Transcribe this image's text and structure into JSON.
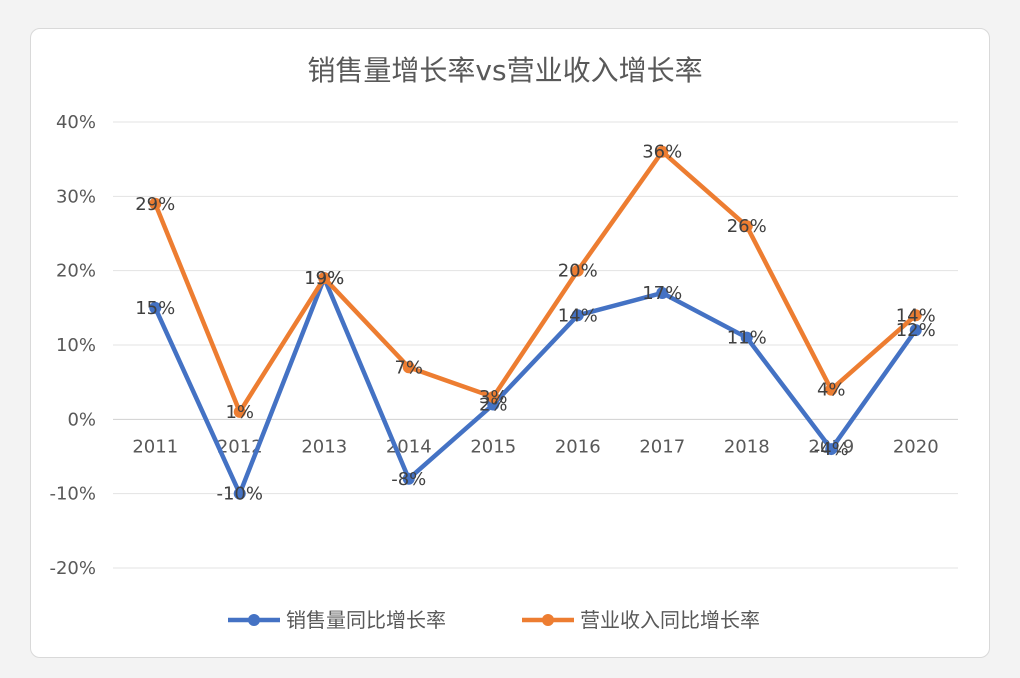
{
  "chart_data": {
    "type": "line",
    "title": "销售量增长率vs营业收入增长率",
    "categories": [
      "2011",
      "2012",
      "2013",
      "2014",
      "2015",
      "2016",
      "2017",
      "2018",
      "2019",
      "2020"
    ],
    "series": [
      {
        "name": "销售量同比增长率",
        "color": "#4472c4",
        "values": [
          15,
          -10,
          19,
          -8,
          2,
          14,
          17,
          11,
          -4,
          12
        ],
        "labels": [
          "15%",
          "-10%",
          "19%",
          "-8%",
          "2%",
          "14%",
          "17%",
          "11%",
          "-4%",
          "12%"
        ]
      },
      {
        "name": "营业收入同比增长率",
        "color": "#ed7d31",
        "values": [
          29,
          1,
          19,
          7,
          3,
          20,
          36,
          26,
          4,
          14
        ],
        "labels": [
          "29%",
          "1%",
          "19%",
          "7%",
          "3%",
          "20%",
          "36%",
          "26%",
          "4%",
          "14%"
        ]
      }
    ],
    "y_ticks": [
      "40%",
      "30%",
      "20%",
      "10%",
      "0%",
      "-10%",
      "-20%"
    ],
    "y_tick_values": [
      40,
      30,
      20,
      10,
      0,
      -10,
      -20
    ],
    "ylim": [
      -20,
      40
    ],
    "grid": true,
    "legend_position": "bottom"
  }
}
